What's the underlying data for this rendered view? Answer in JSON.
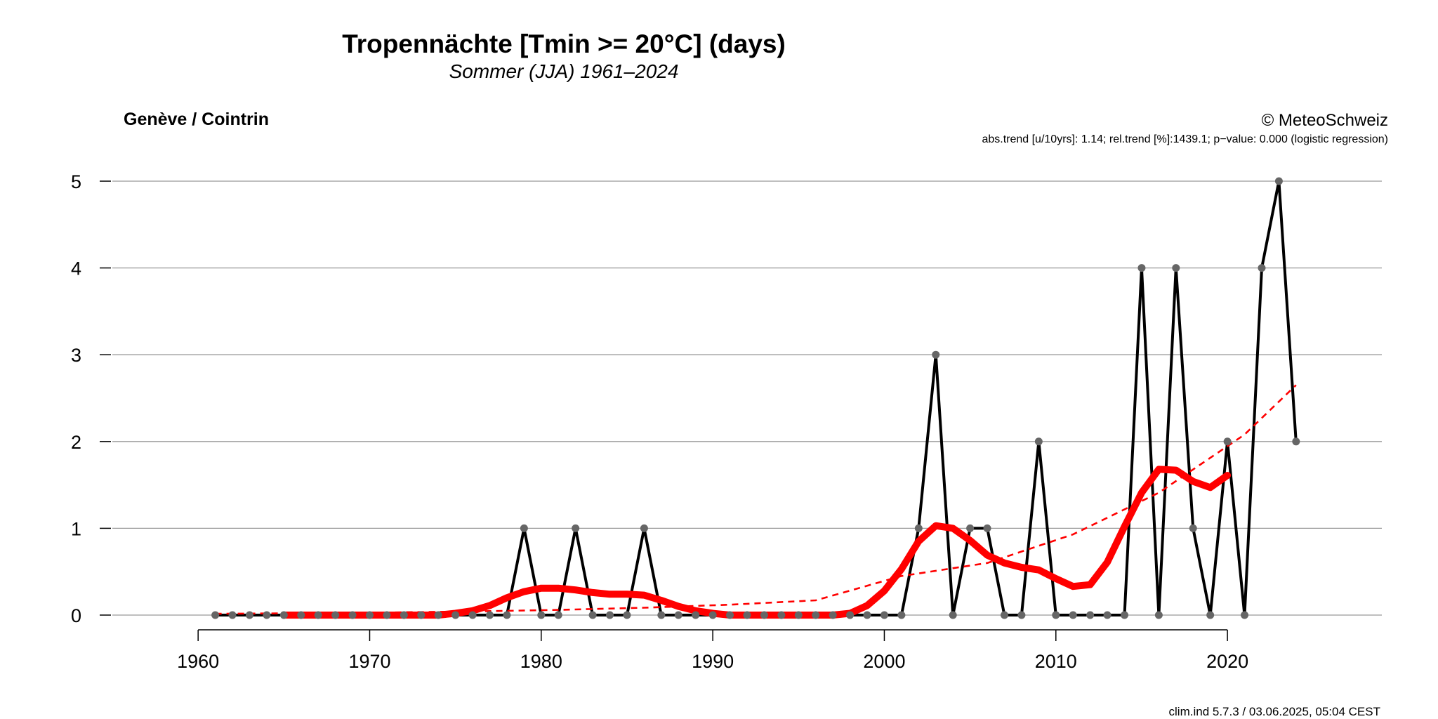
{
  "header": {
    "title": "Tropennächte [Tmin >= 20°C] (days)",
    "subtitle": "Sommer (JJA) 1961–2024",
    "station": "Genève / Cointrin",
    "copyright": "© MeteoSchweiz",
    "trend_info": "abs.trend [u/10yrs]:  1.14; rel.trend [%]:1439.1; p−value: 0.000 (logistic regression)"
  },
  "footer": {
    "version": "clim.ind 5.7.3 / 03.06.2025, 05:04 CEST"
  },
  "chart_data": {
    "type": "line",
    "title": "Tropennächte [Tmin >= 20°C] (days)",
    "subtitle": "Sommer (JJA) 1961–2024",
    "xlabel": "",
    "ylabel": "",
    "xlim": [
      1955,
      2029
    ],
    "ylim": [
      0,
      5
    ],
    "grid": true,
    "x_ticks": [
      1960,
      1970,
      1980,
      1990,
      2000,
      2010,
      2020
    ],
    "y_ticks": [
      0,
      1,
      2,
      3,
      4,
      5
    ],
    "colors": {
      "observed": "#000000",
      "markers": "#666666",
      "smooth": "#ff0000",
      "trend": "#ff0000",
      "grid": "#999999"
    },
    "series": [
      {
        "role": "observed",
        "x": [
          1961,
          1962,
          1963,
          1964,
          1965,
          1966,
          1967,
          1968,
          1969,
          1970,
          1971,
          1972,
          1973,
          1974,
          1975,
          1976,
          1977,
          1978,
          1979,
          1980,
          1981,
          1982,
          1983,
          1984,
          1985,
          1986,
          1987,
          1988,
          1989,
          1990,
          1991,
          1992,
          1993,
          1994,
          1995,
          1996,
          1997,
          1998,
          1999,
          2000,
          2001,
          2002,
          2003,
          2004,
          2005,
          2006,
          2007,
          2008,
          2009,
          2010,
          2011,
          2012,
          2013,
          2014,
          2015,
          2016,
          2017,
          2018,
          2019,
          2020,
          2021,
          2022,
          2023,
          2024
        ],
        "values": [
          0,
          0,
          0,
          0,
          0,
          0,
          0,
          0,
          0,
          0,
          0,
          0,
          0,
          0,
          0,
          0,
          0,
          0,
          1,
          0,
          0,
          1,
          0,
          0,
          0,
          1,
          0,
          0,
          0,
          0,
          0,
          0,
          0,
          0,
          0,
          0,
          0,
          0,
          0,
          0,
          0,
          1,
          3,
          0,
          1,
          1,
          0,
          0,
          2,
          0,
          0,
          0,
          0,
          0,
          4,
          0,
          4,
          1,
          0,
          2,
          0,
          4,
          5,
          2
        ]
      },
      {
        "role": "smooth",
        "x": [
          1965,
          1966,
          1967,
          1968,
          1969,
          1970,
          1971,
          1972,
          1973,
          1974,
          1975,
          1976,
          1977,
          1978,
          1979,
          1980,
          1981,
          1982,
          1983,
          1984,
          1985,
          1986,
          1987,
          1988,
          1989,
          1990,
          1991,
          1992,
          1993,
          1994,
          1995,
          1996,
          1997,
          1998,
          1999,
          2000,
          2001,
          2002,
          2003,
          2004,
          2005,
          2006,
          2007,
          2008,
          2009,
          2010,
          2011,
          2012,
          2013,
          2014,
          2015,
          2016,
          2017,
          2018,
          2019,
          2020
        ],
        "values": [
          0,
          0,
          0,
          0,
          0,
          0,
          0,
          0,
          0,
          0,
          0.02,
          0.05,
          0.11,
          0.2,
          0.27,
          0.31,
          0.31,
          0.29,
          0.26,
          0.24,
          0.24,
          0.23,
          0.17,
          0.1,
          0.05,
          0.02,
          0,
          0,
          0,
          0,
          0,
          0,
          0,
          0.02,
          0.11,
          0.28,
          0.53,
          0.85,
          1.03,
          1.0,
          0.86,
          0.69,
          0.6,
          0.55,
          0.52,
          0.42,
          0.33,
          0.35,
          0.61,
          1.02,
          1.41,
          1.68,
          1.67,
          1.54,
          1.47,
          1.61
        ]
      },
      {
        "role": "trend",
        "x": [
          1961,
          1966,
          1971,
          1976,
          1981,
          1986,
          1991,
          1996,
          2001,
          2006,
          2011,
          2016,
          2021,
          2024
        ],
        "values": [
          0.015,
          0.021,
          0.03,
          0.042,
          0.06,
          0.085,
          0.12,
          0.17,
          0.45,
          0.6,
          0.93,
          1.41,
          2.08,
          2.65
        ]
      }
    ]
  }
}
